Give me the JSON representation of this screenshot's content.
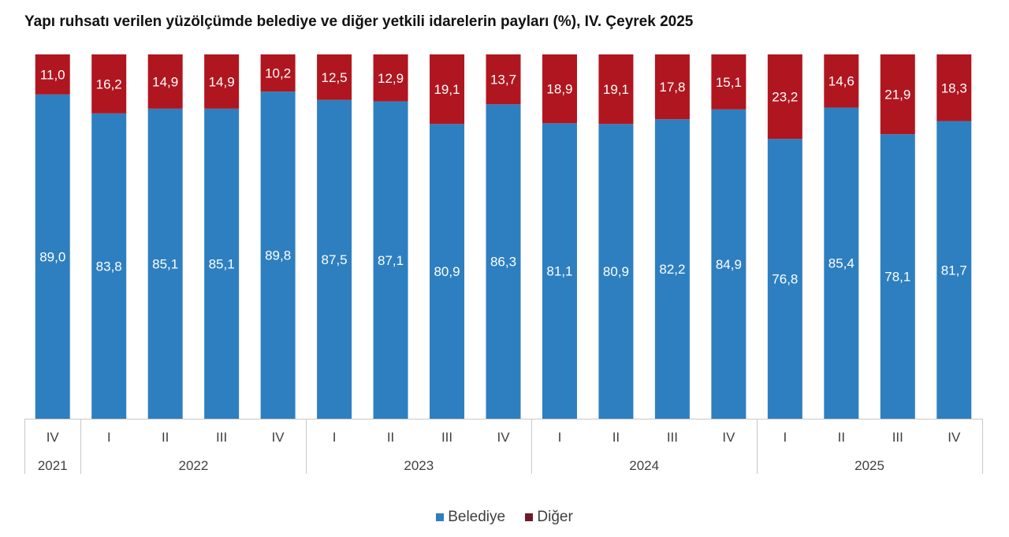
{
  "chart_data": {
    "type": "bar",
    "stacked": true,
    "title": "Yapı ruhsatı verilen yüzölçümde belediye ve diğer yetkili idarelerin payları (%), IV. Çeyrek 2025",
    "categories": [
      "IV",
      "I",
      "II",
      "III",
      "IV",
      "I",
      "II",
      "III",
      "IV",
      "I",
      "II",
      "III",
      "IV",
      "I",
      "II",
      "III",
      "IV"
    ],
    "year_groups": [
      {
        "label": "2021",
        "count": 1
      },
      {
        "label": "2022",
        "count": 4
      },
      {
        "label": "2023",
        "count": 4
      },
      {
        "label": "2024",
        "count": 4
      },
      {
        "label": "2025",
        "count": 4
      }
    ],
    "series": [
      {
        "name": "Belediye",
        "color": "#2e7fc0",
        "values": [
          89.0,
          83.8,
          85.1,
          85.1,
          89.8,
          87.5,
          87.1,
          80.9,
          86.3,
          81.1,
          80.9,
          82.2,
          84.9,
          76.8,
          85.4,
          78.1,
          81.7
        ],
        "labels": [
          "89,0",
          "83,8",
          "85,1",
          "85,1",
          "89,8",
          "87,5",
          "87,1",
          "80,9",
          "86,3",
          "81,1",
          "80,9",
          "82,2",
          "84,9",
          "76,8",
          "85,4",
          "78,1",
          "81,7"
        ]
      },
      {
        "name": "Diğer",
        "color": "#b0161f",
        "values": [
          11.0,
          16.2,
          14.9,
          14.9,
          10.2,
          12.5,
          12.9,
          19.1,
          13.7,
          18.9,
          19.1,
          17.8,
          15.1,
          23.2,
          14.6,
          21.9,
          18.3
        ],
        "labels": [
          "11,0",
          "16,2",
          "14,9",
          "14,9",
          "10,2",
          "12,5",
          "12,9",
          "19,1",
          "13,7",
          "18,9",
          "19,1",
          "17,8",
          "15,1",
          "23,2",
          "14,6",
          "21,9",
          "18,3"
        ]
      }
    ],
    "ylim": [
      0,
      100
    ],
    "grid": false,
    "legend_position": "bottom"
  }
}
